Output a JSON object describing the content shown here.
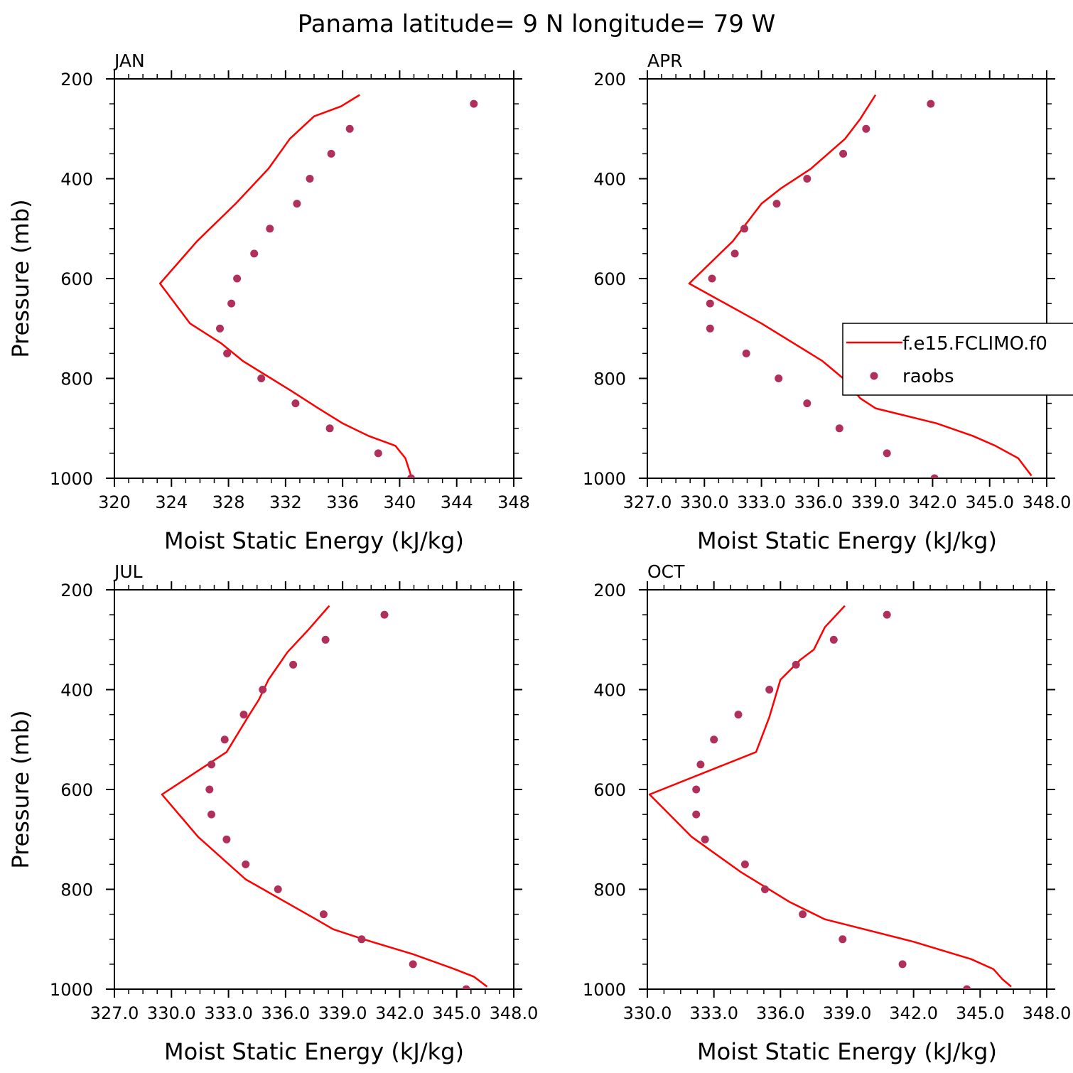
{
  "title": "Panama  latitude= 9 N longitude= 79 W",
  "colors": {
    "model_line": "#ff0000",
    "raobs_marker": "#b0305a"
  },
  "legend": {
    "placement": "right, inside APR panel (clipped)",
    "entries": [
      {
        "label": "f.e15.FCLIMO.f0",
        "style": "line"
      },
      {
        "label": "raobs",
        "style": "marker"
      }
    ]
  },
  "chart_data": [
    {
      "type": "line",
      "panel": "JAN",
      "xlabel": "Moist Static Energy (kJ/kg)",
      "ylabel": "Pressure (mb)",
      "xlim": [
        320,
        348
      ],
      "ylim": [
        1000,
        200
      ],
      "y_inverted": true,
      "xticks": [
        320,
        324,
        328,
        332,
        336,
        340,
        344,
        348
      ],
      "xtick_labels": [
        "320",
        "324",
        "328",
        "332",
        "336",
        "340",
        "344",
        "348"
      ],
      "yticks": [
        200,
        400,
        600,
        800,
        1000
      ],
      "series": [
        {
          "name": "f.e15.FCLIMO.f0",
          "style": "line",
          "x": [
            340.8,
            340.4,
            339.7,
            337.8,
            336.0,
            334.3,
            332.4,
            329.0,
            327.5,
            325.3,
            323.2,
            325.8,
            328.5,
            330.8,
            332.3,
            334.0,
            335.9,
            337.2
          ],
          "y": [
            995,
            960,
            935,
            915,
            890,
            860,
            825,
            765,
            730,
            690,
            610,
            525,
            450,
            380,
            320,
            275,
            255,
            232
          ]
        },
        {
          "name": "raobs",
          "style": "marker",
          "x": [
            340.8,
            338.5,
            335.1,
            332.7,
            330.3,
            327.9,
            327.4,
            328.2,
            328.6,
            329.8,
            330.9,
            332.8,
            333.7,
            335.2,
            336.5,
            345.2
          ],
          "y": [
            1000,
            950,
            900,
            850,
            800,
            750,
            700,
            650,
            600,
            550,
            500,
            450,
            400,
            350,
            300,
            250
          ]
        }
      ]
    },
    {
      "type": "line",
      "panel": "APR",
      "xlabel": "Moist Static Energy (kJ/kg)",
      "ylabel": "",
      "xlim": [
        327.0,
        348.0
      ],
      "ylim": [
        1000,
        200
      ],
      "y_inverted": true,
      "xticks": [
        327,
        330,
        333,
        336,
        339,
        342,
        345,
        348
      ],
      "xtick_labels": [
        "327.0",
        "330.0",
        "333.0",
        "336.0",
        "339.0",
        "342.0",
        "345.0",
        "348.0"
      ],
      "yticks": [
        200,
        400,
        600,
        800,
        1000
      ],
      "series": [
        {
          "name": "f.e15.FCLIMO.f0",
          "style": "line",
          "x": [
            347.2,
            346.5,
            345.3,
            344.1,
            342.2,
            339.0,
            338.2,
            337.3,
            336.2,
            333.0,
            329.2,
            331.5,
            333.0,
            334.0,
            335.6,
            337.4,
            338.2,
            339.0
          ],
          "y": [
            995,
            960,
            935,
            915,
            890,
            860,
            840,
            800,
            765,
            690,
            610,
            525,
            450,
            420,
            380,
            320,
            280,
            232
          ]
        },
        {
          "name": "raobs",
          "style": "marker",
          "x": [
            342.1,
            339.6,
            337.1,
            335.4,
            333.9,
            332.2,
            330.3,
            330.3,
            330.4,
            331.6,
            332.1,
            333.8,
            335.4,
            337.3,
            338.5,
            341.9
          ],
          "y": [
            1000,
            950,
            900,
            850,
            800,
            750,
            700,
            650,
            600,
            550,
            500,
            450,
            400,
            350,
            300,
            250
          ]
        }
      ]
    },
    {
      "type": "line",
      "panel": "JUL",
      "xlabel": "Moist Static Energy (kJ/kg)",
      "ylabel": "Pressure (mb)",
      "xlim": [
        327.0,
        348.0
      ],
      "ylim": [
        1000,
        200
      ],
      "y_inverted": true,
      "xticks": [
        327,
        330,
        333,
        336,
        339,
        342,
        345,
        348
      ],
      "xtick_labels": [
        "327.0",
        "330.0",
        "333.0",
        "336.0",
        "339.0",
        "342.0",
        "345.0",
        "348.0"
      ],
      "yticks": [
        200,
        400,
        600,
        800,
        1000
      ],
      "series": [
        {
          "name": "f.e15.FCLIMO.f0",
          "style": "line",
          "x": [
            346.6,
            345.9,
            344.9,
            342.7,
            340.1,
            338.5,
            337.6,
            333.9,
            331.4,
            329.5,
            332.9,
            334.1,
            334.6,
            335.1,
            336.1,
            337.2,
            338.3
          ],
          "y": [
            995,
            975,
            960,
            930,
            900,
            880,
            860,
            780,
            695,
            610,
            525,
            450,
            420,
            380,
            325,
            280,
            232
          ]
        },
        {
          "name": "raobs",
          "style": "marker",
          "x": [
            345.5,
            342.7,
            340.0,
            338.0,
            335.6,
            333.9,
            332.9,
            332.1,
            332.0,
            332.1,
            332.8,
            333.8,
            334.8,
            336.4,
            338.1,
            341.2
          ],
          "y": [
            1000,
            950,
            900,
            850,
            800,
            750,
            700,
            650,
            600,
            550,
            500,
            450,
            400,
            350,
            300,
            250
          ]
        }
      ]
    },
    {
      "type": "line",
      "panel": "OCT",
      "xlabel": "Moist Static Energy (kJ/kg)",
      "ylabel": "",
      "xlim": [
        330.0,
        348.0
      ],
      "ylim": [
        1000,
        200
      ],
      "y_inverted": true,
      "xticks": [
        330,
        333,
        336,
        339,
        342,
        345,
        348
      ],
      "xtick_labels": [
        "330.0",
        "333.0",
        "336.0",
        "339.0",
        "342.0",
        "345.0",
        "348.0"
      ],
      "yticks": [
        200,
        400,
        600,
        800,
        1000
      ],
      "series": [
        {
          "name": "f.e15.FCLIMO.f0",
          "style": "line",
          "x": [
            346.4,
            346.0,
            345.6,
            344.6,
            342.0,
            338.0,
            336.4,
            334.2,
            332.0,
            330.1,
            334.9,
            335.5,
            336.0,
            336.9,
            337.5,
            338.0,
            338.9
          ],
          "y": [
            995,
            980,
            960,
            940,
            905,
            860,
            825,
            765,
            695,
            610,
            525,
            455,
            380,
            340,
            320,
            275,
            232
          ]
        },
        {
          "name": "raobs",
          "style": "marker",
          "x": [
            344.4,
            341.5,
            338.8,
            337.0,
            335.3,
            334.4,
            332.6,
            332.2,
            332.2,
            332.4,
            333.0,
            334.1,
            335.5,
            336.7,
            338.4,
            340.8
          ],
          "y": [
            1000,
            950,
            900,
            850,
            800,
            750,
            700,
            650,
            600,
            550,
            500,
            450,
            400,
            350,
            300,
            250
          ]
        }
      ]
    }
  ]
}
